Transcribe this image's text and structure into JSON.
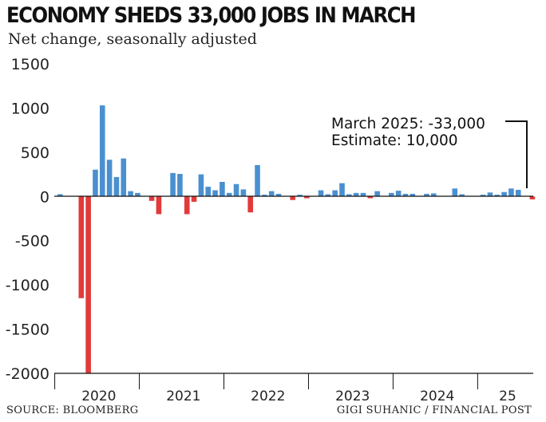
{
  "header": {
    "title": "ECONOMY SHEDS 33,000 JOBS IN MARCH",
    "subtitle": "Net change, seasonally adjusted"
  },
  "footer": {
    "source": "SOURCE: BLOOMBERG",
    "credit": "GIGI SUHANIC / FINANCIAL POST"
  },
  "chart_data": {
    "type": "bar",
    "title": "ECONOMY SHEDS 33,000 JOBS IN MARCH",
    "subtitle": "Net change, seasonally adjusted",
    "unit": "thousands of jobs",
    "ylim": [
      -2000,
      1500
    ],
    "yticks": [
      1500,
      1000,
      500,
      0,
      -500,
      -1000,
      -1500,
      -2000
    ],
    "ytick_labels": [
      "1500",
      "1000",
      "500",
      "0",
      "-500",
      "-1000",
      "-1500",
      "-2000"
    ],
    "grid": false,
    "x_start": "2020-01",
    "x_tick_labels": [
      {
        "label": "2020",
        "month_index": 5.5
      },
      {
        "label": "2021",
        "month_index": 17.5
      },
      {
        "label": "2022",
        "month_index": 29.5
      },
      {
        "label": "2023",
        "month_index": 41.5
      },
      {
        "label": "2024",
        "month_index": 53.5
      },
      {
        "label": "25",
        "month_index": 63.5
      }
    ],
    "positive_color": "#4a90d0",
    "negative_color": "#e23a3a",
    "values": [
      26,
      0,
      0,
      -1150,
      -2000,
      303,
      1030,
      415,
      220,
      430,
      60,
      40,
      0,
      -50,
      -200,
      0,
      265,
      255,
      -200,
      -60,
      250,
      110,
      70,
      165,
      40,
      140,
      80,
      -180,
      355,
      20,
      60,
      30,
      0,
      -40,
      20,
      -20,
      0,
      70,
      25,
      70,
      150,
      25,
      40,
      40,
      -20,
      60,
      0,
      40,
      65,
      30,
      30,
      0,
      30,
      35,
      0,
      0,
      90,
      25,
      0,
      0,
      20,
      45,
      20,
      50,
      90,
      75,
      0,
      -33
    ],
    "annotation": {
      "line1": "March 2025: -33,000",
      "line2": "Estimate: 10,000"
    }
  }
}
